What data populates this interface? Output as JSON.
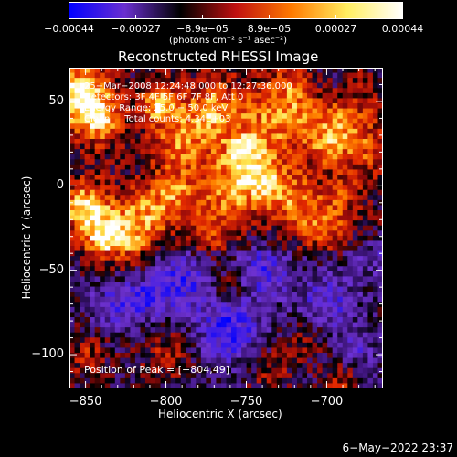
{
  "chart_data": {
    "type": "heatmap",
    "title": "Reconstructed RHESSI Image",
    "xlabel": "Heliocentric X (arcsec)",
    "ylabel": "Heliocentric Y (arcsec)",
    "xlim": [
      -860,
      -665
    ],
    "ylim": [
      -120,
      70
    ],
    "xticks": [
      -850,
      -800,
      -750,
      -700
    ],
    "yticks": [
      50,
      0,
      -50,
      -100
    ],
    "xtick_labels": [
      "−850",
      "−800",
      "−750",
      "−700"
    ],
    "ytick_labels": [
      "50",
      "0",
      "−50",
      "−100"
    ],
    "colorbar": {
      "range": [
        -0.00044,
        0.00044
      ],
      "tick_labels": [
        "−0.00044",
        "−0.00027",
        "−8.9e−05",
        "8.9e−05",
        "0.00027",
        "0.00044"
      ],
      "unit_label": "(photons cm⁻² s⁻¹ asec⁻²)",
      "colors": [
        "#0000ff",
        "#6a2fd0",
        "#000000",
        "#c01010",
        "#ff7a00",
        "#ffee60",
        "#ffffff"
      ]
    },
    "annotations": {
      "time_range": "25−Mar−2008 12:24:48.000 to 12:27:36.000",
      "detectors": "Detectors: 3F 4F 5F 6F 7F 8F, Att 0",
      "energy_range": "Energy Range: 25.0 − 50.0 keV",
      "method": "Clean     Total counts: 4.34E+03",
      "peak_position": "Position of Peak = [−804,49]"
    },
    "peak": {
      "x": -804,
      "y": 49
    }
  },
  "footer": {
    "timestamp": "6−May−2022 23:37"
  }
}
